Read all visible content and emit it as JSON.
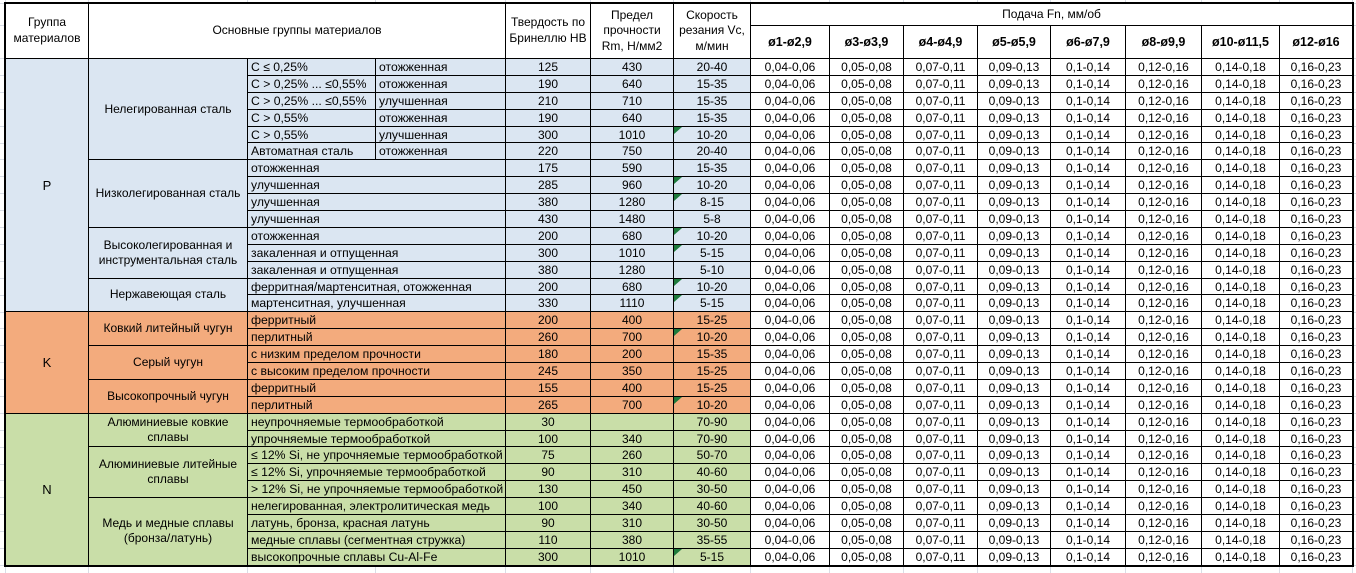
{
  "table": {
    "header": {
      "group_col": "Группа материалов",
      "material_col": "Основные группы материалов",
      "hb_col": "Твердость по Бринеллю HB",
      "rm_col": "Предел прочности Rm, Н/мм2",
      "vc_col": "Скорость резания Vc, м/мин",
      "feed_col": "Подача Fn, мм/об",
      "diameter_cols": [
        "ø1-ø2,9",
        "ø3-ø3,9",
        "ø4-ø4,9",
        "ø5-ø5,9",
        "ø6-ø7,9",
        "ø8-ø9,9",
        "ø10-ø11,5",
        "ø12-ø16"
      ]
    },
    "feed_values": [
      "0,04-0,06",
      "0,05-0,08",
      "0,07-0,11",
      "0,09-0,13",
      "0,1-0,14",
      "0,12-0,16",
      "0,14-0,18",
      "0,16-0,23"
    ],
    "comment_marker_color": "#1e7b3c",
    "groups": [
      {
        "code": "P",
        "color": "#dbe6f2",
        "families": [
          {
            "name": "Нелегированная сталь",
            "rows": [
              {
                "condition": "C ≤ 0,25%",
                "state": "отожженная",
                "hb": "125",
                "rm": "430",
                "vc": "20-40"
              },
              {
                "condition": "C > 0,25% ... ≤0,55%",
                "state": "отожженная",
                "hb": "190",
                "rm": "640",
                "vc": "15-35"
              },
              {
                "condition": "C > 0,25% ... ≤0,55%",
                "state": "улучшенная",
                "hb": "210",
                "rm": "710",
                "vc": "15-35"
              },
              {
                "condition": "C > 0,55%",
                "state": "отожженная",
                "hb": "190",
                "rm": "640",
                "vc": "15-35"
              },
              {
                "condition": "C > 0,55%",
                "state": "улучшенная",
                "hb": "300",
                "rm": "1010",
                "vc": "10-20",
                "marker": true
              },
              {
                "condition": "Автоматная сталь",
                "state": "отожженная",
                "hb": "220",
                "rm": "750",
                "vc": "20-40"
              }
            ]
          },
          {
            "name": "Низколегированная сталь",
            "rows": [
              {
                "label": "отожженная",
                "hb": "175",
                "rm": "590",
                "vc": "15-35"
              },
              {
                "label": "улучшенная",
                "hb": "285",
                "rm": "960",
                "vc": "10-20",
                "marker": true
              },
              {
                "label": "улучшенная",
                "hb": "380",
                "rm": "1280",
                "vc": "8-15",
                "marker": true
              },
              {
                "label": "улучшенная",
                "hb": "430",
                "rm": "1480",
                "vc": "5-8"
              }
            ]
          },
          {
            "name": "Высоколегированная и инструментальная сталь",
            "rows": [
              {
                "label": "отожженная",
                "hb": "200",
                "rm": "680",
                "vc": "10-20",
                "marker": true
              },
              {
                "label": "закаленная и отпущенная",
                "hb": "300",
                "rm": "1010",
                "vc": "5-15",
                "marker": true
              },
              {
                "label": "закаленная и отпущенная",
                "hb": "380",
                "rm": "1280",
                "vc": "5-10"
              }
            ]
          },
          {
            "name": "Нержавеющая сталь",
            "rows": [
              {
                "label": "ферритная/мартенситная, отожженная",
                "hb": "200",
                "rm": "680",
                "vc": "10-20",
                "marker": true
              },
              {
                "label": "мартенситная, улучшенная",
                "hb": "330",
                "rm": "1110",
                "vc": "5-15",
                "marker": true
              }
            ]
          }
        ]
      },
      {
        "code": "K",
        "color": "#f3ab7d",
        "families": [
          {
            "name": "Ковкий литейный чугун",
            "rows": [
              {
                "label": "ферритный",
                "hb": "200",
                "rm": "400",
                "vc": "15-25"
              },
              {
                "label": "перлитный",
                "hb": "260",
                "rm": "700",
                "vc": "10-20",
                "marker": true
              }
            ]
          },
          {
            "name": "Серый чугун",
            "rows": [
              {
                "label": "с низким пределом прочности",
                "hb": "180",
                "rm": "200",
                "vc": "15-35"
              },
              {
                "label": "с высоким пределом прочности",
                "hb": "245",
                "rm": "350",
                "vc": "15-25"
              }
            ]
          },
          {
            "name": "Высокопрочный чугун",
            "rows": [
              {
                "label": "ферритный",
                "hb": "155",
                "rm": "400",
                "vc": "15-25"
              },
              {
                "label": "перлитный",
                "hb": "265",
                "rm": "700",
                "vc": "10-20",
                "marker": true
              }
            ]
          }
        ]
      },
      {
        "code": "N",
        "color": "#c9dea8",
        "families": [
          {
            "name": "Алюминиевые ковкие сплавы",
            "rows": [
              {
                "label": "неупрочняемые термообработкой",
                "hb": "30",
                "rm": "",
                "vc": "70-90"
              },
              {
                "label": "упрочняемые термообработкой",
                "hb": "100",
                "rm": "340",
                "vc": "70-90"
              }
            ]
          },
          {
            "name": "Алюминиевые литейные сплавы",
            "rows": [
              {
                "label": "≤ 12% Si, не упрочняемые термообработкой",
                "hb": "75",
                "rm": "260",
                "vc": "50-70"
              },
              {
                "label": "≤ 12% Si, упрочняемые термообработкой",
                "hb": "90",
                "rm": "310",
                "vc": "40-60"
              },
              {
                "label": "> 12% Si, не упрочняемые термообработкой",
                "hb": "130",
                "rm": "450",
                "vc": "30-50"
              }
            ]
          },
          {
            "name": "Медь и медные сплавы (бронза/латунь)",
            "rows": [
              {
                "label": "нелегированная, электролитическая медь",
                "hb": "100",
                "rm": "340",
                "vc": "40-60"
              },
              {
                "label": "латунь, бронза, красная латунь",
                "hb": "90",
                "rm": "310",
                "vc": "30-50"
              },
              {
                "label": "медные сплавы (сегментная стружка)",
                "hb": "110",
                "rm": "380",
                "vc": "35-55"
              },
              {
                "label": "высокопрочные сплавы Cu-Al-Fe",
                "hb": "300",
                "rm": "1010",
                "vc": "5-15",
                "marker": true
              }
            ]
          }
        ]
      }
    ]
  }
}
